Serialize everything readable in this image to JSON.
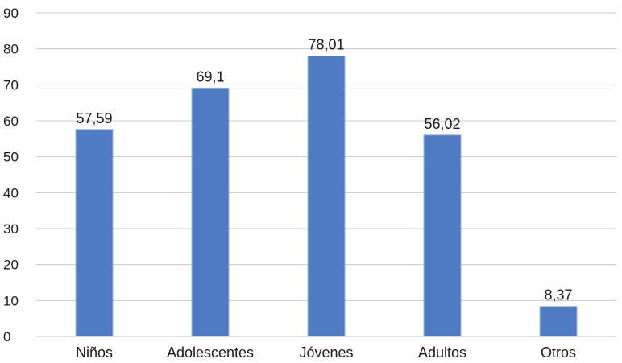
{
  "chart_data": {
    "type": "bar",
    "title": "",
    "xlabel": "",
    "ylabel": "",
    "categories": [
      "Niños",
      "Adolescentes",
      "Jóvenes",
      "Adultos",
      "Otros"
    ],
    "values": [
      57.59,
      69.1,
      78.01,
      56.02,
      8.37
    ],
    "value_labels": [
      "57,59",
      "69,1",
      "78,01",
      "56,02",
      "8,37"
    ],
    "ylim": [
      0,
      90
    ],
    "yticks": [
      0,
      10,
      20,
      30,
      40,
      50,
      60,
      70,
      80,
      90
    ],
    "grid": true,
    "legend": "none",
    "bar_color": "#4e7bc3",
    "bar_edge_color": "#9db4dd"
  }
}
